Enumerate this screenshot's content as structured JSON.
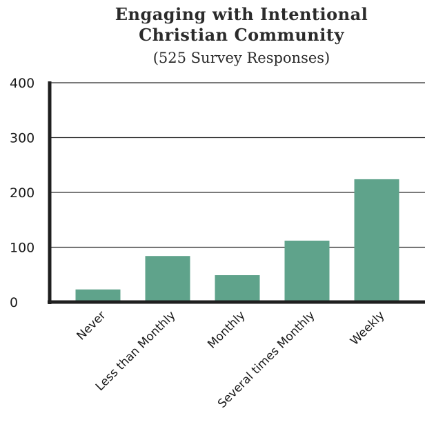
{
  "chart_data": {
    "type": "bar",
    "title_lines": [
      "Engaging with Intentional",
      "Christian Community"
    ],
    "subtitle": "(525 Survey Responses)",
    "categories": [
      "Never",
      "Less than Monthly",
      "Monthly",
      "Several times Monthly",
      "Weekly"
    ],
    "values": [
      23,
      84,
      49,
      112,
      224
    ],
    "ylim": [
      0,
      400
    ],
    "yticks": [
      0,
      100,
      200,
      300,
      400
    ],
    "xlabel": "",
    "ylabel": "",
    "grid": true,
    "bar_color": "#5fa38b",
    "axis_color": "#1f1f1f"
  }
}
